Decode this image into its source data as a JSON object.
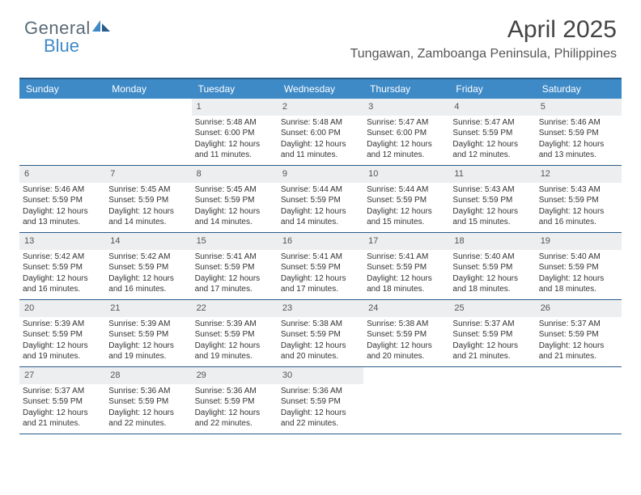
{
  "logo": {
    "word1": "General",
    "word2": "Blue"
  },
  "title": "April 2025",
  "location": "Tungawan, Zamboanga Peninsula, Philippines",
  "colors": {
    "header_bg": "#3e8ac7",
    "header_fg": "#ffffff",
    "border": "#2a5c8a",
    "daynum_bg": "#eceef0",
    "logo_gray": "#5a6b77",
    "logo_blue": "#3e8ac7"
  },
  "dayNames": [
    "Sunday",
    "Monday",
    "Tuesday",
    "Wednesday",
    "Thursday",
    "Friday",
    "Saturday"
  ],
  "startOffset": 2,
  "days": [
    {
      "n": 1,
      "sr": "5:48 AM",
      "ss": "6:00 PM",
      "dl": "12 hours and 11 minutes."
    },
    {
      "n": 2,
      "sr": "5:48 AM",
      "ss": "6:00 PM",
      "dl": "12 hours and 11 minutes."
    },
    {
      "n": 3,
      "sr": "5:47 AM",
      "ss": "6:00 PM",
      "dl": "12 hours and 12 minutes."
    },
    {
      "n": 4,
      "sr": "5:47 AM",
      "ss": "5:59 PM",
      "dl": "12 hours and 12 minutes."
    },
    {
      "n": 5,
      "sr": "5:46 AM",
      "ss": "5:59 PM",
      "dl": "12 hours and 13 minutes."
    },
    {
      "n": 6,
      "sr": "5:46 AM",
      "ss": "5:59 PM",
      "dl": "12 hours and 13 minutes."
    },
    {
      "n": 7,
      "sr": "5:45 AM",
      "ss": "5:59 PM",
      "dl": "12 hours and 14 minutes."
    },
    {
      "n": 8,
      "sr": "5:45 AM",
      "ss": "5:59 PM",
      "dl": "12 hours and 14 minutes."
    },
    {
      "n": 9,
      "sr": "5:44 AM",
      "ss": "5:59 PM",
      "dl": "12 hours and 14 minutes."
    },
    {
      "n": 10,
      "sr": "5:44 AM",
      "ss": "5:59 PM",
      "dl": "12 hours and 15 minutes."
    },
    {
      "n": 11,
      "sr": "5:43 AM",
      "ss": "5:59 PM",
      "dl": "12 hours and 15 minutes."
    },
    {
      "n": 12,
      "sr": "5:43 AM",
      "ss": "5:59 PM",
      "dl": "12 hours and 16 minutes."
    },
    {
      "n": 13,
      "sr": "5:42 AM",
      "ss": "5:59 PM",
      "dl": "12 hours and 16 minutes."
    },
    {
      "n": 14,
      "sr": "5:42 AM",
      "ss": "5:59 PM",
      "dl": "12 hours and 16 minutes."
    },
    {
      "n": 15,
      "sr": "5:41 AM",
      "ss": "5:59 PM",
      "dl": "12 hours and 17 minutes."
    },
    {
      "n": 16,
      "sr": "5:41 AM",
      "ss": "5:59 PM",
      "dl": "12 hours and 17 minutes."
    },
    {
      "n": 17,
      "sr": "5:41 AM",
      "ss": "5:59 PM",
      "dl": "12 hours and 18 minutes."
    },
    {
      "n": 18,
      "sr": "5:40 AM",
      "ss": "5:59 PM",
      "dl": "12 hours and 18 minutes."
    },
    {
      "n": 19,
      "sr": "5:40 AM",
      "ss": "5:59 PM",
      "dl": "12 hours and 18 minutes."
    },
    {
      "n": 20,
      "sr": "5:39 AM",
      "ss": "5:59 PM",
      "dl": "12 hours and 19 minutes."
    },
    {
      "n": 21,
      "sr": "5:39 AM",
      "ss": "5:59 PM",
      "dl": "12 hours and 19 minutes."
    },
    {
      "n": 22,
      "sr": "5:39 AM",
      "ss": "5:59 PM",
      "dl": "12 hours and 19 minutes."
    },
    {
      "n": 23,
      "sr": "5:38 AM",
      "ss": "5:59 PM",
      "dl": "12 hours and 20 minutes."
    },
    {
      "n": 24,
      "sr": "5:38 AM",
      "ss": "5:59 PM",
      "dl": "12 hours and 20 minutes."
    },
    {
      "n": 25,
      "sr": "5:37 AM",
      "ss": "5:59 PM",
      "dl": "12 hours and 21 minutes."
    },
    {
      "n": 26,
      "sr": "5:37 AM",
      "ss": "5:59 PM",
      "dl": "12 hours and 21 minutes."
    },
    {
      "n": 27,
      "sr": "5:37 AM",
      "ss": "5:59 PM",
      "dl": "12 hours and 21 minutes."
    },
    {
      "n": 28,
      "sr": "5:36 AM",
      "ss": "5:59 PM",
      "dl": "12 hours and 22 minutes."
    },
    {
      "n": 29,
      "sr": "5:36 AM",
      "ss": "5:59 PM",
      "dl": "12 hours and 22 minutes."
    },
    {
      "n": 30,
      "sr": "5:36 AM",
      "ss": "5:59 PM",
      "dl": "12 hours and 22 minutes."
    }
  ],
  "labels": {
    "sunrise": "Sunrise:",
    "sunset": "Sunset:",
    "daylight": "Daylight:"
  }
}
